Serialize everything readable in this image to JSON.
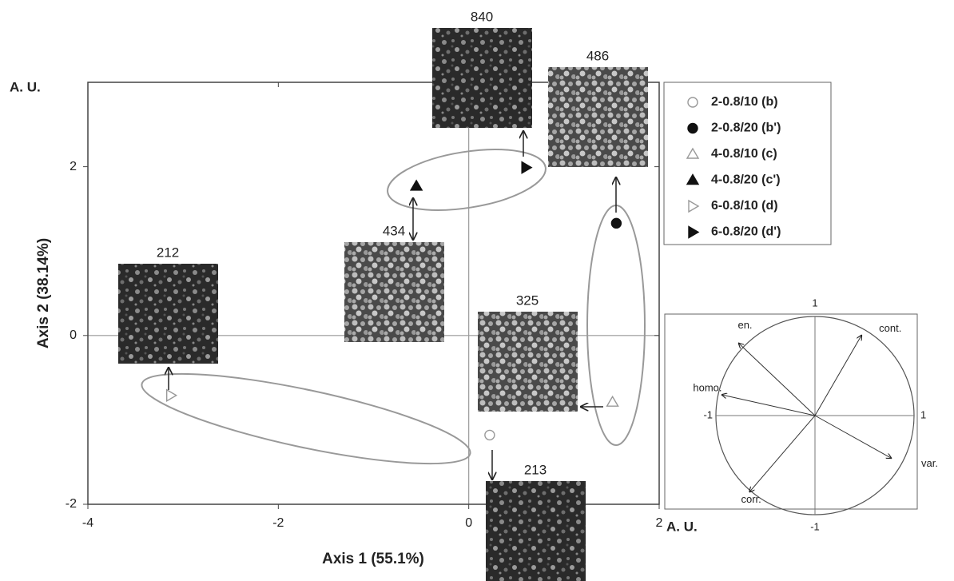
{
  "chart_data": [
    {
      "type": "scatter",
      "x_label": "Axis 1 (55.1%)",
      "y_label": "Axis 2 (38.14%)",
      "x_unit": "A. U.",
      "y_unit": "A. U.",
      "xlim": [
        -4,
        2
      ],
      "ylim": [
        -2,
        3
      ],
      "xticks": [
        -4,
        -2,
        0,
        2
      ],
      "yticks": [
        -2,
        0,
        2
      ],
      "annotations": [
        "840",
        "486",
        "434",
        "212",
        "325",
        "213"
      ],
      "series": [
        {
          "name": "2-0.8/10 (b)",
          "marker": "circle",
          "filled": false,
          "color": "#999999",
          "x": [
            0.22
          ],
          "values": [
            -1.18
          ]
        },
        {
          "name": "2-0.8/20 (b')",
          "marker": "circle",
          "filled": true,
          "color": "#111111",
          "x": [
            1.55
          ],
          "values": [
            1.33
          ]
        },
        {
          "name": "4-0.8/10 (c)",
          "marker": "triangle",
          "filled": false,
          "color": "#999999",
          "x": [
            1.51
          ],
          "values": [
            -0.79
          ]
        },
        {
          "name": "4-0.8/20 (c')",
          "marker": "triangle",
          "filled": true,
          "color": "#111111",
          "x": [
            -0.55
          ],
          "values": [
            1.77
          ]
        },
        {
          "name": "6-0.8/10 (d)",
          "marker": "triangle-right",
          "filled": false,
          "color": "#999999",
          "x": [
            -3.13
          ],
          "values": [
            -0.71
          ]
        },
        {
          "name": "6-0.8/20 (d')",
          "marker": "triangle-right",
          "filled": true,
          "color": "#111111",
          "x": [
            0.6
          ],
          "values": [
            1.99
          ]
        }
      ]
    },
    {
      "type": "vector",
      "xlim": [
        -1,
        1
      ],
      "ylim": [
        -1,
        1
      ],
      "xticks": [
        -1,
        1
      ],
      "yticks": [
        -1,
        1
      ],
      "vectors": [
        {
          "name": "en.",
          "x": -0.77,
          "y": 0.73
        },
        {
          "name": "cont.",
          "x": 0.47,
          "y": 0.81
        },
        {
          "name": "homo.",
          "x": -0.94,
          "y": 0.21
        },
        {
          "name": "var.",
          "x": 0.77,
          "y": -0.43
        },
        {
          "name": "corr.",
          "x": -0.66,
          "y": -0.77
        }
      ]
    }
  ]
}
